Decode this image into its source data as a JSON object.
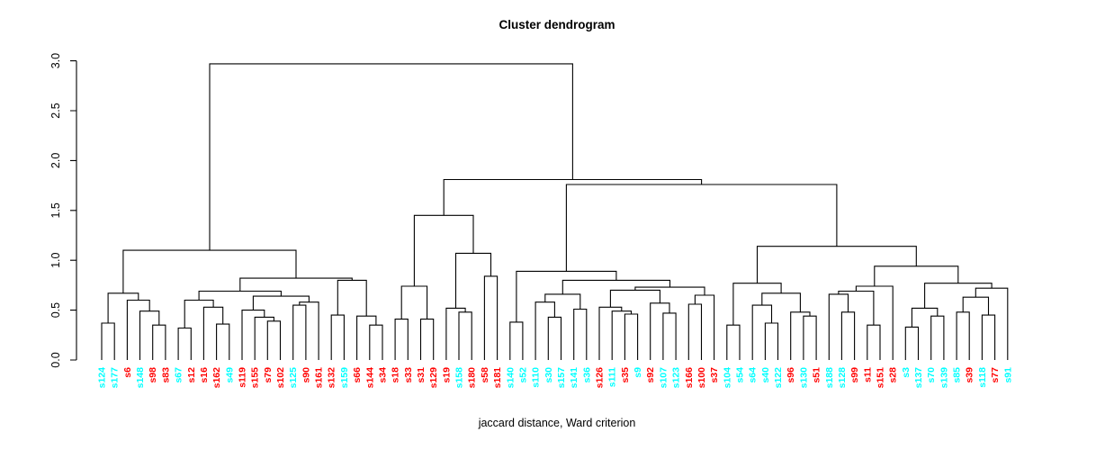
{
  "chart_data": {
    "type": "dendrogram",
    "title": "Cluster dendrogram",
    "xlabel": "jaccard distance, Ward criterion",
    "ylim": [
      0,
      3
    ],
    "yticks": [
      "0.0",
      "0.5",
      "1.0",
      "1.5",
      "2.0",
      "2.5",
      "3.0"
    ],
    "grid": "off",
    "cluster_colors": {
      "cyan": "#00FFFF",
      "red": "#FF0000"
    },
    "line_color": "#000000",
    "leaves": [
      {
        "label": "s124",
        "color": "cyan"
      },
      {
        "label": "s177",
        "color": "cyan"
      },
      {
        "label": "s6",
        "color": "red"
      },
      {
        "label": "s148",
        "color": "cyan"
      },
      {
        "label": "s98",
        "color": "red"
      },
      {
        "label": "s83",
        "color": "red"
      },
      {
        "label": "s67",
        "color": "cyan"
      },
      {
        "label": "s12",
        "color": "red"
      },
      {
        "label": "s16",
        "color": "red"
      },
      {
        "label": "s162",
        "color": "red"
      },
      {
        "label": "s49",
        "color": "cyan"
      },
      {
        "label": "s119",
        "color": "red"
      },
      {
        "label": "s155",
        "color": "red"
      },
      {
        "label": "s79",
        "color": "red"
      },
      {
        "label": "s102",
        "color": "red"
      },
      {
        "label": "s125",
        "color": "cyan"
      },
      {
        "label": "s90",
        "color": "red"
      },
      {
        "label": "s161",
        "color": "red"
      },
      {
        "label": "s132",
        "color": "red"
      },
      {
        "label": "s159",
        "color": "cyan"
      },
      {
        "label": "s66",
        "color": "red"
      },
      {
        "label": "s144",
        "color": "red"
      },
      {
        "label": "s34",
        "color": "red"
      },
      {
        "label": "s18",
        "color": "red"
      },
      {
        "label": "s33",
        "color": "red"
      },
      {
        "label": "s31",
        "color": "red"
      },
      {
        "label": "s129",
        "color": "red"
      },
      {
        "label": "s19",
        "color": "red"
      },
      {
        "label": "s158",
        "color": "cyan"
      },
      {
        "label": "s180",
        "color": "red"
      },
      {
        "label": "s58",
        "color": "red"
      },
      {
        "label": "s181",
        "color": "red"
      },
      {
        "label": "s140",
        "color": "cyan"
      },
      {
        "label": "s52",
        "color": "cyan"
      },
      {
        "label": "s110",
        "color": "cyan"
      },
      {
        "label": "s30",
        "color": "cyan"
      },
      {
        "label": "s157",
        "color": "cyan"
      },
      {
        "label": "s141",
        "color": "cyan"
      },
      {
        "label": "s36",
        "color": "cyan"
      },
      {
        "label": "s126",
        "color": "red"
      },
      {
        "label": "s111",
        "color": "cyan"
      },
      {
        "label": "s35",
        "color": "red"
      },
      {
        "label": "s9",
        "color": "cyan"
      },
      {
        "label": "s92",
        "color": "red"
      },
      {
        "label": "s107",
        "color": "cyan"
      },
      {
        "label": "s123",
        "color": "cyan"
      },
      {
        "label": "s166",
        "color": "red"
      },
      {
        "label": "s100",
        "color": "red"
      },
      {
        "label": "s37",
        "color": "red"
      },
      {
        "label": "s104",
        "color": "cyan"
      },
      {
        "label": "s54",
        "color": "cyan"
      },
      {
        "label": "s64",
        "color": "cyan"
      },
      {
        "label": "s40",
        "color": "cyan"
      },
      {
        "label": "s122",
        "color": "cyan"
      },
      {
        "label": "s96",
        "color": "red"
      },
      {
        "label": "s130",
        "color": "cyan"
      },
      {
        "label": "s51",
        "color": "red"
      },
      {
        "label": "s188",
        "color": "cyan"
      },
      {
        "label": "s128",
        "color": "cyan"
      },
      {
        "label": "s99",
        "color": "red"
      },
      {
        "label": "s11",
        "color": "red"
      },
      {
        "label": "s151",
        "color": "red"
      },
      {
        "label": "s28",
        "color": "red"
      },
      {
        "label": "s3",
        "color": "cyan"
      },
      {
        "label": "s137",
        "color": "cyan"
      },
      {
        "label": "s70",
        "color": "cyan"
      },
      {
        "label": "s139",
        "color": "cyan"
      },
      {
        "label": "s85",
        "color": "cyan"
      },
      {
        "label": "s39",
        "color": "red"
      },
      {
        "label": "s118",
        "color": "cyan"
      },
      {
        "label": "s77",
        "color": "red"
      },
      {
        "label": "s91",
        "color": "cyan"
      }
    ],
    "tree": {
      "h": 2.97,
      "c": [
        {
          "h": 1.1,
          "c": [
            {
              "h": 0.67,
              "c": [
                {
                  "h": 0.37,
                  "c": [
                    "s124",
                    "s177"
                  ]
                },
                {
                  "h": 0.6,
                  "c": [
                    "s6",
                    {
                      "h": 0.49,
                      "c": [
                        "s148",
                        {
                          "h": 0.35,
                          "c": [
                            "s98",
                            "s83"
                          ]
                        }
                      ]
                    }
                  ]
                }
              ]
            },
            {
              "h": 0.82,
              "c": [
                {
                  "h": 0.69,
                  "c": [
                    {
                      "h": 0.6,
                      "c": [
                        {
                          "h": 0.32,
                          "c": [
                            "s67",
                            "s12"
                          ]
                        },
                        {
                          "h": 0.53,
                          "c": [
                            "s16",
                            {
                              "h": 0.36,
                              "c": [
                                "s162",
                                "s49"
                              ]
                            }
                          ]
                        }
                      ]
                    },
                    {
                      "h": 0.64,
                      "c": [
                        {
                          "h": 0.5,
                          "c": [
                            "s119",
                            {
                              "h": 0.43,
                              "c": [
                                "s155",
                                {
                                  "h": 0.39,
                                  "c": [
                                    "s79",
                                    "s102"
                                  ]
                                }
                              ]
                            }
                          ]
                        },
                        {
                          "h": 0.58,
                          "c": [
                            {
                              "h": 0.55,
                              "c": [
                                "s125",
                                "s90"
                              ]
                            },
                            "s161"
                          ]
                        }
                      ]
                    }
                  ]
                },
                {
                  "h": 0.8,
                  "c": [
                    {
                      "h": 0.45,
                      "c": [
                        "s132",
                        "s159"
                      ]
                    },
                    {
                      "h": 0.44,
                      "c": [
                        "s66",
                        {
                          "h": 0.35,
                          "c": [
                            "s144",
                            "s34"
                          ]
                        }
                      ]
                    }
                  ]
                }
              ]
            }
          ]
        },
        {
          "h": 1.81,
          "c": [
            {
              "h": 1.45,
              "c": [
                {
                  "h": 0.74,
                  "c": [
                    {
                      "h": 0.41,
                      "c": [
                        "s18",
                        "s33"
                      ]
                    },
                    {
                      "h": 0.41,
                      "c": [
                        "s31",
                        "s129"
                      ]
                    }
                  ]
                },
                {
                  "h": 1.07,
                  "c": [
                    {
                      "h": 0.52,
                      "c": [
                        "s19",
                        {
                          "h": 0.48,
                          "c": [
                            "s158",
                            "s180"
                          ]
                        }
                      ]
                    },
                    {
                      "h": 0.84,
                      "c": [
                        "s58",
                        "s181"
                      ]
                    }
                  ]
                }
              ]
            },
            {
              "h": 1.76,
              "c": [
                {
                  "h": 0.89,
                  "c": [
                    {
                      "h": 0.38,
                      "c": [
                        "s140",
                        "s52"
                      ]
                    },
                    {
                      "h": 0.8,
                      "c": [
                        {
                          "h": 0.66,
                          "c": [
                            {
                              "h": 0.58,
                              "c": [
                                "s110",
                                {
                                  "h": 0.43,
                                  "c": [
                                    "s30",
                                    "s157"
                                  ]
                                }
                              ]
                            },
                            {
                              "h": 0.51,
                              "c": [
                                "s141",
                                "s36"
                              ]
                            }
                          ]
                        },
                        {
                          "h": 0.73,
                          "c": [
                            {
                              "h": 0.7,
                              "c": [
                                {
                                  "h": 0.53,
                                  "c": [
                                    "s126",
                                    {
                                      "h": 0.49,
                                      "c": [
                                        "s111",
                                        {
                                          "h": 0.46,
                                          "c": [
                                            "s35",
                                            "s9"
                                          ]
                                        }
                                      ]
                                    }
                                  ]
                                },
                                {
                                  "h": 0.57,
                                  "c": [
                                    "s92",
                                    {
                                      "h": 0.47,
                                      "c": [
                                        "s107",
                                        "s123"
                                      ]
                                    }
                                  ]
                                }
                              ]
                            },
                            {
                              "h": 0.65,
                              "c": [
                                {
                                  "h": 0.56,
                                  "c": [
                                    "s166",
                                    "s100"
                                  ]
                                },
                                "s37"
                              ]
                            }
                          ]
                        }
                      ]
                    }
                  ]
                },
                {
                  "h": 1.14,
                  "c": [
                    {
                      "h": 0.77,
                      "c": [
                        {
                          "h": 0.35,
                          "c": [
                            "s104",
                            "s54"
                          ]
                        },
                        {
                          "h": 0.67,
                          "c": [
                            {
                              "h": 0.55,
                              "c": [
                                "s64",
                                {
                                  "h": 0.37,
                                  "c": [
                                    "s40",
                                    "s122"
                                  ]
                                }
                              ]
                            },
                            {
                              "h": 0.48,
                              "c": [
                                "s96",
                                {
                                  "h": 0.44,
                                  "c": [
                                    "s130",
                                    "s51"
                                  ]
                                }
                              ]
                            }
                          ]
                        }
                      ]
                    },
                    {
                      "h": 0.94,
                      "c": [
                        {
                          "h": 0.74,
                          "c": [
                            {
                              "h": 0.69,
                              "c": [
                                {
                                  "h": 0.66,
                                  "c": [
                                    "s188",
                                    {
                                      "h": 0.48,
                                      "c": [
                                        "s128",
                                        "s99"
                                      ]
                                    }
                                  ]
                                },
                                {
                                  "h": 0.35,
                                  "c": [
                                    "s11",
                                    "s151"
                                  ]
                                }
                              ]
                            },
                            "s28"
                          ]
                        },
                        {
                          "h": 0.77,
                          "c": [
                            {
                              "h": 0.52,
                              "c": [
                                {
                                  "h": 0.33,
                                  "c": [
                                    "s3",
                                    "s137"
                                  ]
                                },
                                {
                                  "h": 0.44,
                                  "c": [
                                    "s70",
                                    "s139"
                                  ]
                                }
                              ]
                            },
                            {
                              "h": 0.72,
                              "c": [
                                {
                                  "h": 0.63,
                                  "c": [
                                    {
                                      "h": 0.48,
                                      "c": [
                                        "s85",
                                        "s39"
                                      ]
                                    },
                                    {
                                      "h": 0.45,
                                      "c": [
                                        "s118",
                                        "s77"
                                      ]
                                    }
                                  ]
                                },
                                "s91"
                              ]
                            }
                          ]
                        }
                      ]
                    }
                  ]
                }
              ]
            }
          ]
        }
      ]
    }
  }
}
